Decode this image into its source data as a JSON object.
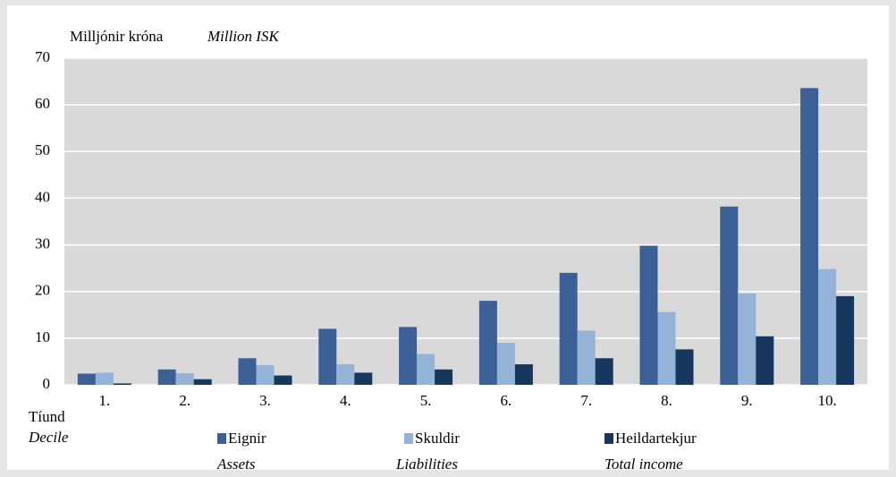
{
  "chart_data": {
    "type": "bar",
    "ylabel": "Milljónir króna",
    "ylabel_en": "Million ISK",
    "xlabel": "Tíund",
    "xlabel_en": "Decile",
    "categories": [
      "1.",
      "2.",
      "3.",
      "4.",
      "5.",
      "6.",
      "7.",
      "8.",
      "9.",
      "10."
    ],
    "series": [
      {
        "name": "Eignir",
        "name_en": "Assets",
        "color": "#3a6096",
        "values": [
          2.4,
          3.3,
          5.7,
          12,
          12.4,
          18,
          24,
          29.8,
          38.2,
          63.6
        ]
      },
      {
        "name": "Skuldir",
        "name_en": "Liabilities",
        "color": "#95b3d7",
        "values": [
          2.6,
          2.5,
          4.2,
          4.4,
          6.6,
          9,
          11.6,
          15.6,
          19.6,
          24.8
        ]
      },
      {
        "name": "Heildartekjur",
        "name_en": "Total income",
        "color": "#17375e",
        "values": [
          0.3,
          1.2,
          2,
          2.6,
          3.3,
          4.4,
          5.7,
          7.6,
          10.4,
          19
        ]
      }
    ],
    "ylim": [
      0,
      70
    ],
    "yticks": [
      0,
      10,
      20,
      30,
      40,
      50,
      60,
      70
    ],
    "grid": true
  }
}
